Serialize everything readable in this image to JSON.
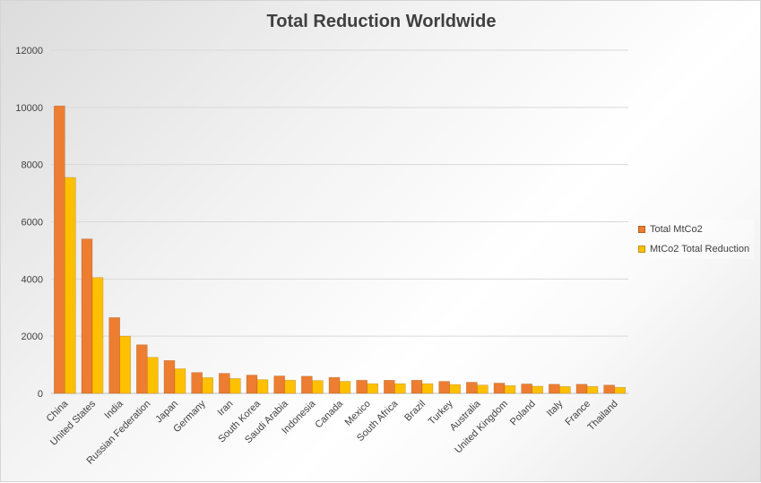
{
  "chart_data": {
    "type": "bar",
    "title": "Total Reduction Worldwide",
    "xlabel": "",
    "ylabel": "",
    "ylim": [
      0,
      12000
    ],
    "yticks": [
      0,
      2000,
      4000,
      6000,
      8000,
      10000,
      12000
    ],
    "grid": true,
    "legend_position": "right",
    "categories": [
      "China",
      "United States",
      "India",
      "Russian Federation",
      "Japan",
      "Germany",
      "Iran",
      "South Korea",
      "Saudi Arabia",
      "Indonesia",
      "Canada",
      "Mexico",
      "South Africa",
      "Brazil",
      "Turkey",
      "Australia",
      "United Kingdom",
      "Poland",
      "Italy",
      "France",
      "Thailand"
    ],
    "series": [
      {
        "name": "Total MtCo2",
        "color": "#ed7d31",
        "values": [
          10050,
          5400,
          2650,
          1700,
          1150,
          730,
          700,
          640,
          610,
          600,
          560,
          460,
          460,
          460,
          420,
          390,
          360,
          330,
          320,
          320,
          290
        ]
      },
      {
        "name": "MtCo2 Total Reduction",
        "color": "#ffc000",
        "values": [
          7550,
          4050,
          2000,
          1260,
          860,
          550,
          520,
          480,
          460,
          450,
          420,
          340,
          340,
          340,
          310,
          290,
          270,
          250,
          240,
          240,
          210
        ]
      }
    ]
  }
}
